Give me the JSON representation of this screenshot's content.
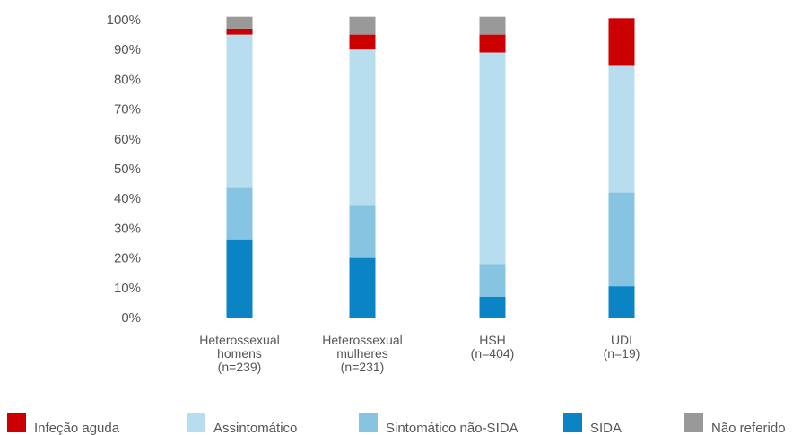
{
  "chart_data": {
    "type": "bar",
    "stacked": true,
    "percent": true,
    "categories": [
      [
        "Heterossexual",
        "homens",
        "(n=239)"
      ],
      [
        "Heterossexual",
        "mulheres",
        "(n=231)"
      ],
      [
        "HSH",
        "(n=404)"
      ],
      [
        "UDI",
        "(n=19)"
      ]
    ],
    "ylim": [
      0,
      100
    ],
    "yticks": [
      "0%",
      "10%",
      "20%",
      "30%",
      "40%",
      "50%",
      "60%",
      "70%",
      "80%",
      "90%",
      "100%"
    ],
    "grid": false,
    "legend_position": "bottom",
    "series": [
      {
        "name": "SIDA",
        "color": "#0a84c4",
        "values": [
          26,
          20,
          7,
          10.5
        ]
      },
      {
        "name": "Sintomático não-SIDA",
        "color": "#86c4e2",
        "values": [
          17.5,
          17.5,
          11,
          31.5
        ]
      },
      {
        "name": "Assintomático",
        "color": "#b8ddee",
        "values": [
          51.5,
          52.5,
          71,
          42.5
        ]
      },
      {
        "name": "Infeção aguda",
        "color": "#cc0000",
        "values": [
          2,
          5,
          6,
          16
        ]
      },
      {
        "name": "Não referido",
        "color": "#999999",
        "values": [
          4,
          6,
          6,
          0
        ]
      }
    ],
    "legend_order": [
      "Infeção aguda",
      "Assintomático",
      "Sintomático não-SIDA",
      "SIDA",
      "Não referido"
    ]
  }
}
